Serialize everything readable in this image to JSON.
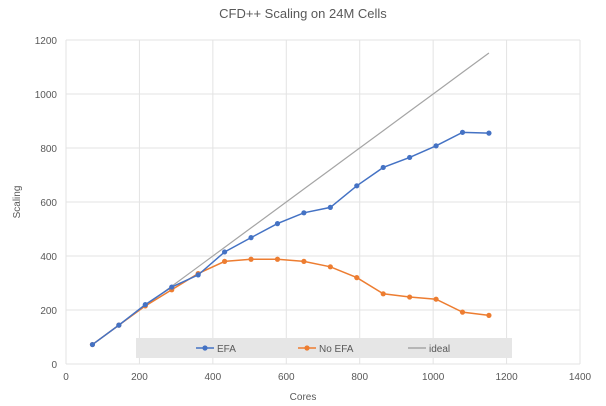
{
  "chart_data": {
    "type": "line",
    "title": "CFD++ Scaling on 24M Cells",
    "xlabel": "Cores",
    "ylabel": "Scaling",
    "xlim": [
      0,
      1400
    ],
    "ylim": [
      0,
      1200
    ],
    "xticks": [
      0,
      200,
      400,
      600,
      800,
      1000,
      1200,
      1400
    ],
    "yticks": [
      0,
      200,
      400,
      600,
      800,
      1000,
      1200
    ],
    "grid": true,
    "legend_position": "bottom-inside",
    "x": [
      72,
      144,
      216,
      288,
      360,
      432,
      504,
      576,
      648,
      720,
      792,
      864,
      936,
      1008,
      1080,
      1152
    ],
    "series": [
      {
        "name": "EFA",
        "color": "#4472c4",
        "markers": true,
        "values": [
          72,
          144,
          220,
          285,
          330,
          415,
          468,
          520,
          560,
          580,
          660,
          728,
          765,
          808,
          858,
          855
        ]
      },
      {
        "name": "No EFA",
        "color": "#ed7d31",
        "markers": true,
        "values": [
          72,
          144,
          215,
          275,
          335,
          380,
          388,
          388,
          380,
          360,
          320,
          260,
          248,
          240,
          192,
          180
        ]
      },
      {
        "name": "ideal",
        "color": "#a5a5a5",
        "markers": false,
        "values": [
          72,
          144,
          216,
          288,
          360,
          432,
          504,
          576,
          648,
          720,
          792,
          864,
          936,
          1008,
          1080,
          1152
        ]
      }
    ]
  }
}
